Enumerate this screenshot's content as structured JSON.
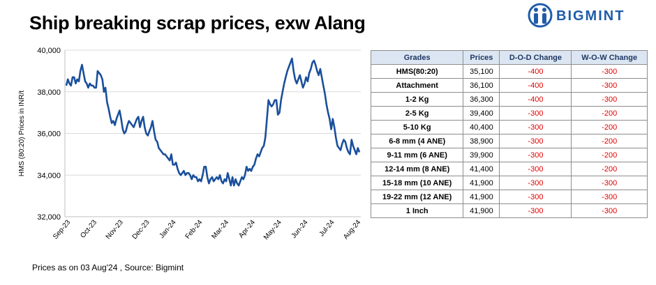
{
  "header": {
    "title": "Ship breaking scrap prices, exw Alang",
    "logo_text": "BIGMINT"
  },
  "footer": {
    "note": "Prices as on 03 Aug'24 , Source: Bigmint"
  },
  "colors": {
    "line": "#1a4f9c",
    "brand": "#1f5ca8",
    "negative": "#e00000",
    "header_bg": "#dce6f2"
  },
  "chart_data": {
    "type": "line",
    "title": "",
    "xlabel": "",
    "ylabel": "HMS (80:20) Prices in INR/t",
    "ylim": [
      32000,
      40000
    ],
    "yticks": [
      "32,000",
      "34,000",
      "36,000",
      "38,000",
      "40,000"
    ],
    "ytick_values": [
      32000,
      34000,
      36000,
      38000,
      40000
    ],
    "xticks": [
      "Sep-23",
      "Oct-23",
      "Nov-23",
      "Dec-23",
      "Jan-24",
      "Feb-24",
      "Mar-24",
      "Apr-24",
      "May-24",
      "Jun-24",
      "Jul-24",
      "Aug-24"
    ],
    "grid": "horizontal",
    "series": [
      {
        "values": [
          38300,
          38600,
          38400,
          38300,
          38700,
          38700,
          38400,
          38600,
          38500,
          39000,
          39300,
          38900,
          38500,
          38400,
          38200,
          38400,
          38300,
          38300,
          38200,
          38200,
          39000,
          38900,
          38800,
          38600,
          38000,
          38200,
          37500,
          37200,
          36800,
          36500,
          36600,
          36400,
          36700,
          36900,
          37100,
          36700,
          36200,
          36000,
          36100,
          36400,
          36600,
          36500,
          36400,
          36300,
          36500,
          36700,
          36800,
          36300,
          36600,
          36800,
          36300,
          36000,
          35900,
          36100,
          36300,
          36600,
          36100,
          35700,
          35600,
          35300,
          35200,
          35100,
          35000,
          35000,
          34900,
          34800,
          34700,
          35000,
          34500,
          34500,
          34600,
          34300,
          34100,
          34000,
          34100,
          34200,
          34000,
          34100,
          34100,
          34000,
          33800,
          34000,
          33900,
          33900,
          33700,
          33800,
          33700,
          34000,
          34400,
          34400,
          33900,
          33600,
          33800,
          33900,
          33700,
          33800,
          33900,
          33800,
          34000,
          33700,
          33600,
          33800,
          33700,
          34100,
          33800,
          33500,
          33900,
          33500,
          33800,
          33600,
          33500,
          33700,
          33900,
          33800,
          34000,
          34400,
          34200,
          34300,
          34200,
          34400,
          34500,
          34800,
          35000,
          34900,
          35100,
          35300,
          35400,
          35800,
          36700,
          37600,
          37400,
          37300,
          37400,
          37600,
          37600,
          36900,
          37000,
          37600,
          38000,
          38400,
          38700,
          39000,
          39200,
          39400,
          39600,
          39000,
          38600,
          38400,
          38600,
          38800,
          38500,
          38200,
          38400,
          38700,
          38500,
          38900,
          39100,
          39400,
          39500,
          39300,
          39000,
          38800,
          39100,
          38700,
          38300,
          37900,
          37400,
          37000,
          36700,
          36200,
          36700,
          36300,
          35800,
          35400,
          35300,
          35200,
          35500,
          35700,
          35600,
          35300,
          35100,
          35000,
          35700,
          35400,
          35200,
          35000,
          35300,
          35100
        ],
        "color": "#1a4f9c"
      }
    ]
  },
  "table": {
    "headers": [
      "Grades",
      "Prices",
      "D-O-D Change",
      "W-O-W Change"
    ],
    "rows": [
      {
        "grade": "HMS(80:20)",
        "price": "35,100",
        "dod": "-400",
        "wow": "-300"
      },
      {
        "grade": "Attachment",
        "price": "36,100",
        "dod": "-400",
        "wow": "-300"
      },
      {
        "grade": "1-2 Kg",
        "price": "36,300",
        "dod": "-400",
        "wow": "-300"
      },
      {
        "grade": "2-5 Kg",
        "price": "39,400",
        "dod": "-300",
        "wow": "-200"
      },
      {
        "grade": "5-10 Kg",
        "price": "40,400",
        "dod": "-300",
        "wow": "-200"
      },
      {
        "grade": "6-8 mm (4 ANE)",
        "price": "38,900",
        "dod": "-300",
        "wow": "-200"
      },
      {
        "grade": "9-11 mm (6 ANE)",
        "price": "39,900",
        "dod": "-300",
        "wow": "-200"
      },
      {
        "grade": "12-14 mm (8 ANE)",
        "price": "41,400",
        "dod": "-300",
        "wow": "-200"
      },
      {
        "grade": "15-18 mm (10 ANE)",
        "price": "41,900",
        "dod": "-300",
        "wow": "-300"
      },
      {
        "grade": "19-22 mm (12 ANE)",
        "price": "41,900",
        "dod": "-300",
        "wow": "-300"
      },
      {
        "grade": "1 Inch",
        "price": "41,900",
        "dod": "-300",
        "wow": "-300"
      }
    ]
  }
}
